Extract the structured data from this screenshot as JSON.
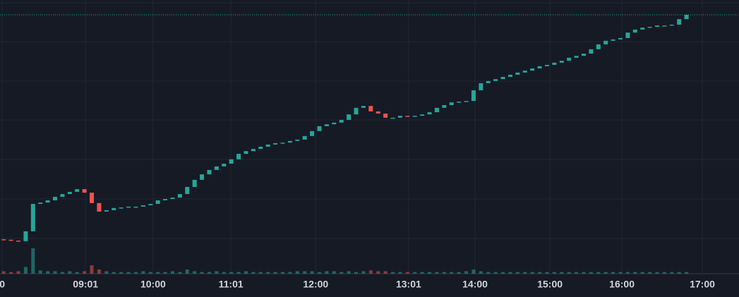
{
  "chart_data": {
    "type": "candlestick",
    "x": [
      1,
      3,
      5,
      7,
      9,
      11,
      13,
      15,
      17,
      19,
      21,
      23,
      25,
      27,
      29,
      31,
      33,
      35,
      37,
      39,
      41,
      43,
      45,
      47,
      49,
      51,
      53,
      55,
      57,
      59,
      61,
      63,
      65,
      67,
      69,
      71,
      73,
      75,
      77,
      79,
      81,
      83,
      85,
      87,
      89,
      91,
      93,
      95,
      97,
      99,
      101,
      103,
      105,
      107,
      109,
      111,
      113,
      115,
      117,
      119,
      121,
      123,
      125,
      127,
      129,
      131,
      133,
      135,
      137,
      139,
      141,
      143,
      145,
      147,
      149,
      151,
      153,
      155,
      157,
      159,
      161,
      163,
      165,
      167,
      169,
      171,
      173,
      175,
      177,
      179,
      181,
      183,
      185,
      187
    ],
    "open": [
      12.6,
      12.4,
      12.1,
      11.9,
      15.5,
      25.5,
      26.0,
      26.8,
      28.1,
      29.1,
      29.9,
      30.9,
      29.6,
      25.8,
      22.7,
      23.2,
      24.0,
      24.2,
      24.5,
      24.5,
      25.0,
      25.5,
      26.8,
      27.3,
      27.8,
      29.1,
      31.7,
      34.3,
      36.3,
      37.9,
      39.2,
      40.2,
      41.8,
      43.8,
      44.8,
      45.6,
      46.4,
      47.2,
      47.7,
      47.9,
      48.5,
      49.0,
      50.3,
      52.1,
      53.9,
      54.6,
      55.2,
      56.2,
      58.2,
      60.6,
      61.3,
      59.3,
      58.5,
      57.0,
      57.0,
      57.7,
      57.5,
      57.7,
      58.2,
      59.0,
      60.6,
      61.6,
      62.6,
      62.9,
      63.1,
      67.0,
      69.6,
      70.4,
      71.1,
      71.9,
      72.7,
      73.5,
      74.2,
      75.0,
      75.8,
      76.3,
      77.1,
      77.8,
      78.9,
      79.6,
      80.4,
      82.0,
      83.8,
      85.1,
      85.6,
      86.1,
      88.1,
      89.2,
      89.9,
      90.2,
      90.7,
      90.7,
      91.0,
      93.0
    ],
    "close": [
      12.4,
      12.1,
      11.9,
      15.5,
      25.5,
      26.0,
      26.8,
      28.1,
      29.1,
      29.9,
      30.9,
      29.6,
      25.8,
      22.7,
      23.2,
      24.0,
      24.2,
      24.5,
      24.5,
      25.0,
      25.5,
      26.8,
      27.3,
      27.8,
      29.1,
      31.7,
      34.3,
      36.3,
      37.9,
      39.2,
      40.2,
      41.8,
      43.8,
      44.8,
      45.6,
      46.4,
      47.2,
      47.7,
      47.9,
      48.5,
      49.0,
      50.3,
      52.1,
      53.9,
      54.6,
      55.2,
      56.2,
      58.2,
      60.6,
      61.3,
      59.3,
      58.5,
      57.0,
      57.0,
      57.7,
      57.5,
      57.7,
      58.2,
      59.0,
      60.6,
      61.6,
      62.6,
      62.9,
      63.1,
      67.0,
      69.6,
      70.4,
      71.1,
      71.9,
      72.7,
      73.5,
      74.2,
      75.0,
      75.8,
      76.3,
      77.1,
      77.8,
      78.9,
      79.6,
      80.4,
      82.0,
      83.8,
      85.1,
      85.6,
      86.1,
      88.1,
      89.2,
      89.9,
      90.2,
      90.7,
      90.7,
      91.0,
      93.0,
      94.6
    ],
    "volume": [
      3,
      2,
      3,
      8,
      30,
      4,
      3,
      3,
      2,
      3,
      2,
      3,
      10,
      5,
      3,
      2,
      2,
      2,
      2,
      3,
      2,
      2,
      2,
      3,
      2,
      5,
      3,
      2,
      2,
      3,
      2,
      2,
      2,
      3,
      2,
      2,
      2,
      2,
      2,
      2,
      3,
      3,
      3,
      2,
      3,
      3,
      2,
      3,
      2,
      3,
      4,
      3,
      3,
      2,
      2,
      2,
      2,
      2,
      2,
      2,
      2,
      2,
      2,
      3,
      5,
      3,
      2,
      2,
      2,
      2,
      2,
      2,
      2,
      2,
      2,
      2,
      2,
      2,
      2,
      2,
      2,
      2,
      2,
      2,
      2,
      2,
      2,
      2,
      2,
      2,
      2,
      2,
      2,
      2
    ],
    "up_color": "#26a69a",
    "down_color": "#ef5350",
    "xlim": [
      0,
      201.3
    ],
    "ylim": [
      0,
      100
    ],
    "volume_lim": [
      0,
      100
    ],
    "xticks": [
      {
        "value": 0.6,
        "label": "0"
      },
      {
        "value": 23.3,
        "label": "09:01"
      },
      {
        "value": 41.7,
        "label": "10:00"
      },
      {
        "value": 62.9,
        "label": "11:01"
      },
      {
        "value": 86,
        "label": "12:00"
      },
      {
        "value": 111.3,
        "label": "13:01"
      },
      {
        "value": 129.4,
        "label": "14:00"
      },
      {
        "value": 149.8,
        "label": "15:00"
      },
      {
        "value": 169.4,
        "label": "16:00"
      },
      {
        "value": 191.3,
        "label": "17:00"
      }
    ],
    "grid": true
  }
}
